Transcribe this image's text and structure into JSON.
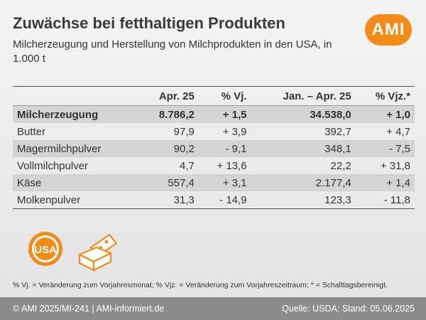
{
  "header": {
    "title": "Zuwächse bei fetthaltigen Produkten",
    "subtitle": "Milcherzeugung und Herstellung von Milchprodukten in den USA, in 1.000 t",
    "logo_text": "AMI"
  },
  "table": {
    "columns": [
      "",
      "Apr. 25",
      "% Vj.",
      "Jan. – Apr. 25",
      "% Vjz.*"
    ],
    "rows": [
      [
        "Milcherzeugung",
        "8.786,2",
        "+ 1,5",
        "34.538,0",
        "+ 1,0"
      ],
      [
        "Butter",
        "97,9",
        "+ 3,9",
        "392,7",
        "+ 4,7"
      ],
      [
        "Magermilchpulver",
        "90,2",
        "- 9,1",
        "348,1",
        "- 7,5"
      ],
      [
        "Vollmilchpulver",
        "4,7",
        "+ 13,6",
        "22,2",
        "+ 31,8"
      ],
      [
        "Käse",
        "557,4",
        "+ 3,1",
        "2.177,4",
        "+ 1,4"
      ],
      [
        "Molkenpulver",
        "31,3",
        "- 14,9",
        "123,3",
        "- 11,8"
      ]
    ]
  },
  "icons": {
    "usa_badge_text": "USA",
    "usa_icon": "usa-stamp-icon",
    "product_icon": "butter-cheese-icon"
  },
  "footnote": "% Vj. = Veränderung zum Vorjahresmonat; % Vjz. = Veränderung zum Vorjahreszeitraum; * = Schalttagsbereinigt.",
  "footer": {
    "left": "© AMI 2025/MI-241 | AMI-informiert.de",
    "right": "Quelle: USDA; Stand: 05.06.2025"
  },
  "colors": {
    "accent": "#f28b17",
    "row_shade": "#d4d4d4",
    "footer_bg": "#8c8c8c"
  }
}
